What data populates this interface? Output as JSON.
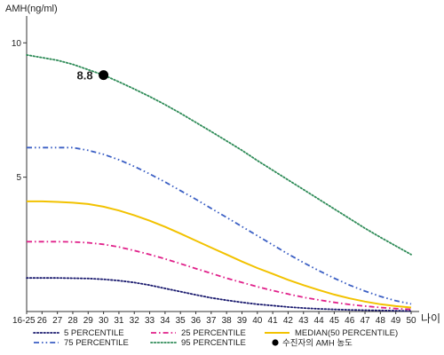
{
  "chart_data": {
    "type": "line",
    "ylabel": "AMH(ng/ml)",
    "xlabel": "나이",
    "x": [
      "16-25",
      "26",
      "27",
      "28",
      "29",
      "30",
      "31",
      "32",
      "33",
      "34",
      "35",
      "36",
      "37",
      "38",
      "39",
      "40",
      "41",
      "42",
      "43",
      "44",
      "45",
      "46",
      "47",
      "48",
      "49",
      "50"
    ],
    "yticks": [
      "10",
      "5"
    ],
    "ylim": [
      0,
      11
    ],
    "series": [
      {
        "name": "5 PERCENTILE",
        "color": "#1a1a6e",
        "dash": "dotted",
        "values": [
          1.25,
          1.25,
          1.25,
          1.24,
          1.23,
          1.2,
          1.15,
          1.08,
          0.98,
          0.86,
          0.74,
          0.62,
          0.51,
          0.42,
          0.34,
          0.27,
          0.22,
          0.17,
          0.13,
          0.1,
          0.08,
          0.06,
          0.05,
          0.04,
          0.03,
          0.02
        ]
      },
      {
        "name": "25 PERCENTILE",
        "color": "#e0218a",
        "dash": "dashdot",
        "values": [
          2.6,
          2.6,
          2.6,
          2.59,
          2.56,
          2.5,
          2.4,
          2.27,
          2.12,
          1.96,
          1.78,
          1.6,
          1.42,
          1.24,
          1.08,
          0.92,
          0.78,
          0.65,
          0.53,
          0.43,
          0.34,
          0.26,
          0.2,
          0.15,
          0.11,
          0.08
        ]
      },
      {
        "name": "MEDIAN(50 PERCENTILE)",
        "color": "#f2c200",
        "dash": "solid",
        "values": [
          4.1,
          4.1,
          4.08,
          4.05,
          4.0,
          3.9,
          3.76,
          3.58,
          3.38,
          3.15,
          2.9,
          2.64,
          2.38,
          2.12,
          1.86,
          1.62,
          1.4,
          1.18,
          0.98,
          0.8,
          0.63,
          0.49,
          0.37,
          0.27,
          0.2,
          0.15
        ]
      },
      {
        "name": "75 PERCENTILE",
        "color": "#3b5fc4",
        "dash": "dashdotdot",
        "values": [
          6.1,
          6.1,
          6.1,
          6.1,
          6.0,
          5.85,
          5.65,
          5.4,
          5.12,
          4.82,
          4.5,
          4.18,
          3.84,
          3.5,
          3.16,
          2.82,
          2.48,
          2.14,
          1.82,
          1.52,
          1.24,
          0.98,
          0.76,
          0.56,
          0.4,
          0.28
        ]
      },
      {
        "name": "95 PERCENTILE",
        "color": "#2e8b57",
        "dash": "dotted",
        "values": [
          9.55,
          9.45,
          9.35,
          9.2,
          9.0,
          8.8,
          8.55,
          8.28,
          8.0,
          7.7,
          7.38,
          7.04,
          6.7,
          6.35,
          6.0,
          5.62,
          5.26,
          4.9,
          4.54,
          4.18,
          3.82,
          3.46,
          3.1,
          2.76,
          2.44,
          2.12
        ]
      }
    ],
    "marker": {
      "x": "30",
      "y": 8.8,
      "label": "8.8",
      "legend": "수진자의 AMH 농도",
      "color": "#000000"
    },
    "legend_placement": "bottom",
    "grid": false
  }
}
